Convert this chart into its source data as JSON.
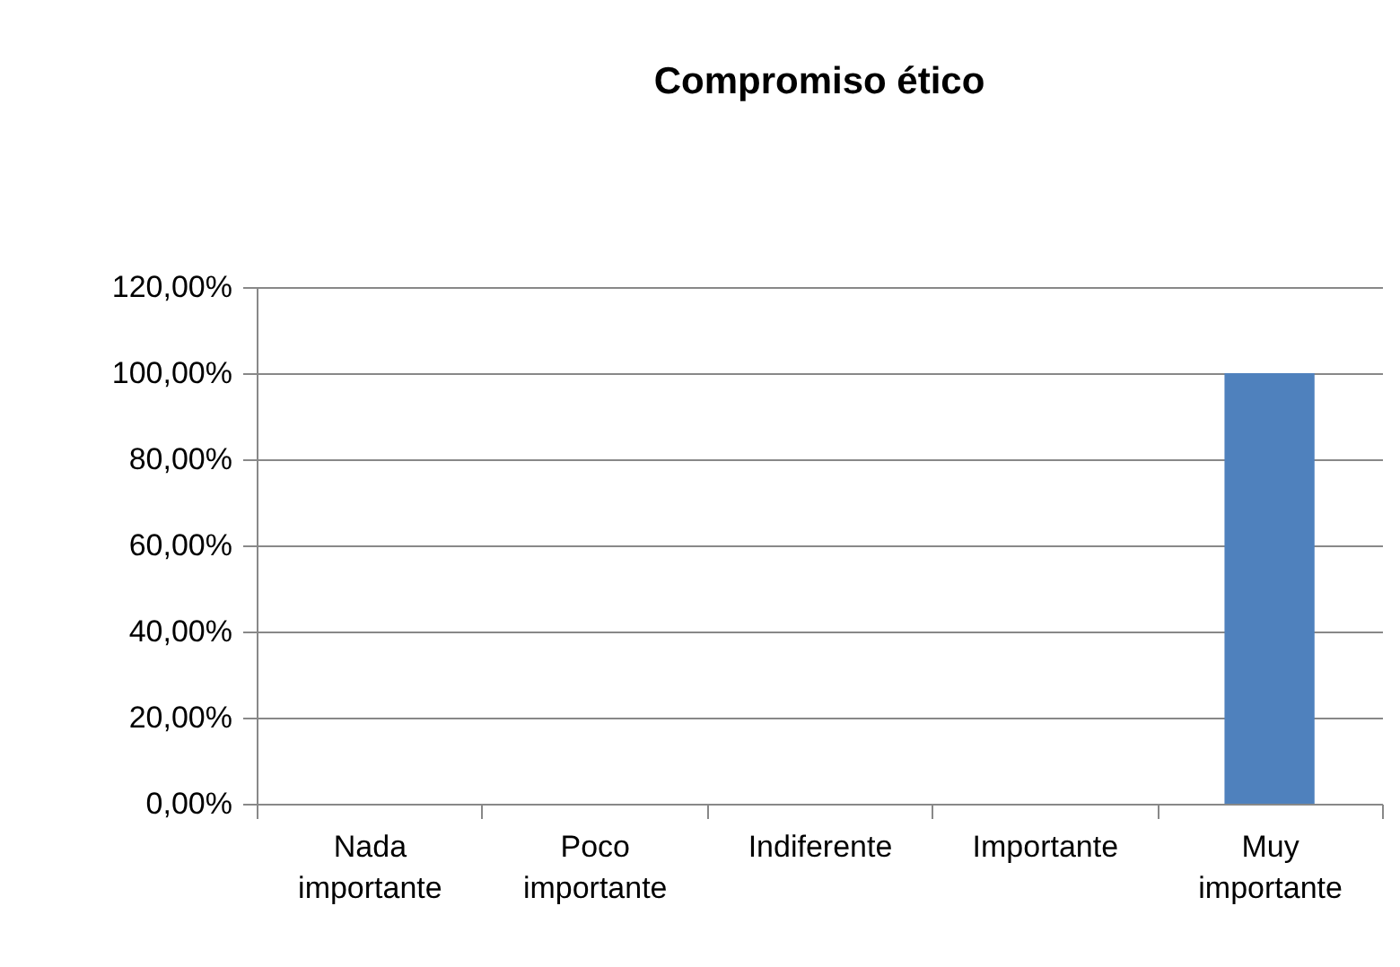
{
  "chart_data": {
    "type": "bar",
    "title": "Compromiso ético",
    "categories": [
      "Nada importante",
      "Poco importante",
      "Indiferente",
      "Importante",
      "Muy importante"
    ],
    "values": [
      0,
      0,
      0,
      0,
      100
    ],
    "color": "#4f81bd",
    "ylim": [
      0,
      120
    ],
    "yticks": [
      {
        "value": 0,
        "label": "0,00%"
      },
      {
        "value": 20,
        "label": "20,00%"
      },
      {
        "value": 40,
        "label": "40,00%"
      },
      {
        "value": 60,
        "label": "60,00%"
      },
      {
        "value": 80,
        "label": "80,00%"
      },
      {
        "value": 100,
        "label": "100,00%"
      },
      {
        "value": 120,
        "label": "120,00%"
      }
    ],
    "grid": "y"
  }
}
